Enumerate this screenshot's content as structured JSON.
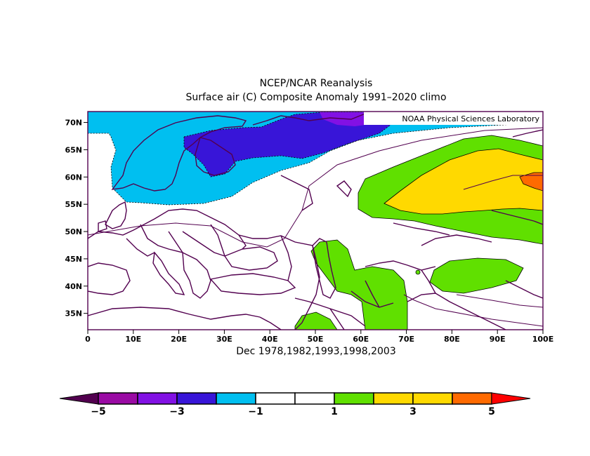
{
  "title_line1": "NCEP/NCAR Reanalysis",
  "title_line2": "Surface air (C) Composite Anomaly 1991–2020 climo",
  "subtitle": "Dec 1978,1982,1993,1998,2003",
  "credit": "NOAA Physical Sciences Laboratory",
  "map": {
    "lon_range": [
      0,
      100
    ],
    "lat_range": [
      32,
      72
    ],
    "lon_ticks": [
      "0",
      "10E",
      "20E",
      "30E",
      "40E",
      "50E",
      "60E",
      "70E",
      "80E",
      "90E",
      "100E"
    ],
    "lat_ticks": [
      "35N",
      "40N",
      "45N",
      "50N",
      "55N",
      "60N",
      "65N",
      "70N"
    ],
    "lat_tick_values": [
      35,
      40,
      45,
      50,
      55,
      60,
      65,
      70
    ]
  },
  "colorbar": {
    "labels": [
      "−5",
      "−3",
      "−1",
      "1",
      "3",
      "5"
    ],
    "colors": [
      "#52004f",
      "#9a0ba4",
      "#8211e4",
      "#3815d8",
      "#00bff0",
      "#ffffff",
      "#ffffff",
      "#60e000",
      "#ffd900",
      "#ffd900",
      "#ff6a00",
      "#ff0000"
    ]
  }
}
